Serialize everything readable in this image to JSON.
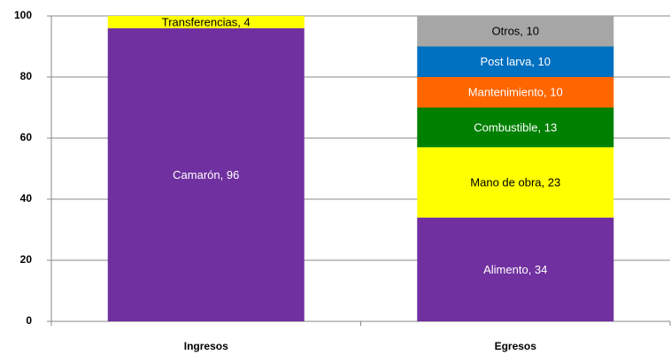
{
  "chart_data": {
    "type": "stacked_bar",
    "categories": [
      "Ingresos",
      "Egresos"
    ],
    "series": [
      {
        "name": "Camarón",
        "color": "#7030a0",
        "values": [
          96,
          null
        ],
        "value_labels": [
          "Camarón, 96",
          null
        ]
      },
      {
        "name": "Transferencias",
        "color": "#ffff00",
        "values": [
          4,
          null
        ],
        "value_labels": [
          "Transferencias, 4",
          null
        ]
      },
      {
        "name": "Alimento",
        "color": "#7030a0",
        "values": [
          null,
          34
        ],
        "value_labels": [
          null,
          "Alimento, 34"
        ]
      },
      {
        "name": "Mano de obra",
        "color": "#ffff00",
        "values": [
          null,
          23
        ],
        "value_labels": [
          null,
          "Mano de obra, 23"
        ]
      },
      {
        "name": "Combustible",
        "color": "#008000",
        "values": [
          null,
          13
        ],
        "value_labels": [
          null,
          "Combustible, 13"
        ]
      },
      {
        "name": "Mantenimiento",
        "color": "#ff6600",
        "values": [
          null,
          10
        ],
        "value_labels": [
          null,
          "Mantenimiento, 10"
        ]
      },
      {
        "name": "Post larva",
        "color": "#0070c0",
        "values": [
          null,
          10
        ],
        "value_labels": [
          null,
          "Post larva, 10"
        ]
      },
      {
        "name": "Otros",
        "color": "#a6a6a6",
        "values": [
          null,
          10
        ],
        "value_labels": [
          null,
          "Otros, 10"
        ]
      }
    ],
    "ylim": [
      0,
      100
    ],
    "yticks": [
      0,
      20,
      40,
      60,
      80,
      100
    ],
    "grid": true
  }
}
